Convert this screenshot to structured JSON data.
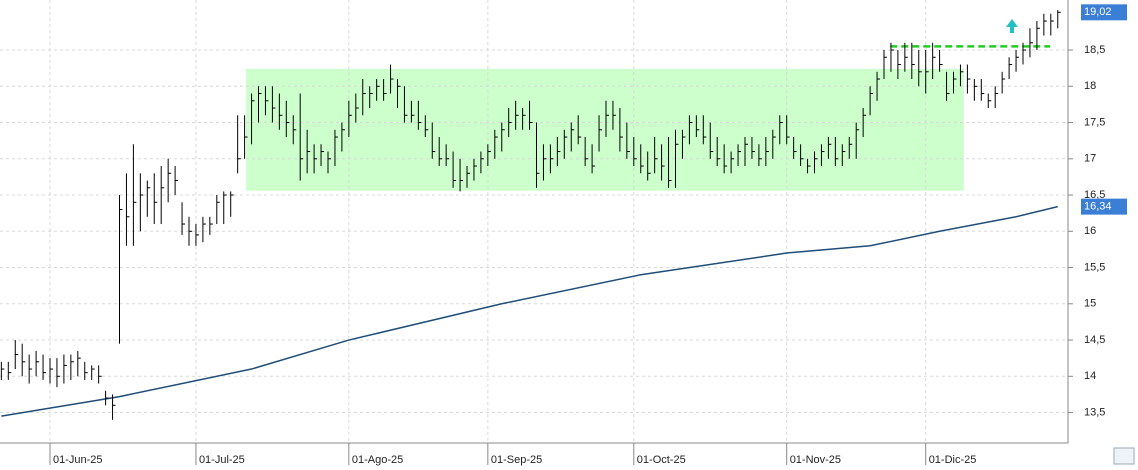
{
  "chart_data": {
    "type": "ohlc",
    "categories": [
      null,
      null,
      null,
      null,
      null,
      null,
      null,
      "01-Jun-25",
      null,
      null,
      null,
      null,
      null,
      null,
      null,
      null,
      null,
      null,
      null,
      null,
      null,
      null,
      null,
      null,
      null,
      null,
      null,
      null,
      "01-Jul-25",
      null,
      null,
      null,
      null,
      null,
      null,
      null,
      null,
      null,
      null,
      null,
      null,
      null,
      null,
      null,
      null,
      null,
      null,
      null,
      null,
      null,
      "01-Ago-25",
      null,
      null,
      null,
      null,
      null,
      null,
      null,
      null,
      null,
      null,
      null,
      null,
      null,
      null,
      null,
      null,
      null,
      null,
      null,
      "01-Sep-25",
      null,
      null,
      null,
      null,
      null,
      null,
      null,
      null,
      null,
      null,
      null,
      null,
      null,
      null,
      null,
      null,
      null,
      null,
      null,
      null,
      "01-Oct-25",
      null,
      null,
      null,
      null,
      null,
      null,
      null,
      null,
      null,
      null,
      null,
      null,
      null,
      null,
      null,
      null,
      null,
      null,
      null,
      null,
      null,
      "01-Nov-25",
      null,
      null,
      null,
      null,
      null,
      null,
      null,
      null,
      null,
      null,
      null,
      null,
      null,
      null,
      null,
      null,
      null,
      null,
      null,
      "01-Dic-25",
      null,
      null,
      null,
      null,
      null,
      null,
      null,
      null,
      null,
      null,
      null,
      null,
      null,
      null,
      null,
      null,
      null,
      null,
      null
    ],
    "high": [
      14.2,
      14.2,
      14.5,
      14.45,
      14.3,
      14.35,
      14.3,
      14.25,
      14.25,
      14.3,
      14.3,
      14.35,
      14.2,
      14.15,
      14.15,
      13.8,
      13.75,
      16.5,
      16.8,
      17.2,
      16.8,
      16.7,
      16.8,
      16.9,
      17.0,
      16.9,
      16.4,
      16.2,
      16.1,
      16.2,
      16.2,
      16.5,
      16.55,
      16.55,
      17.6,
      17.6,
      17.9,
      18.0,
      18.0,
      18.0,
      17.9,
      17.8,
      17.6,
      17.9,
      17.4,
      17.2,
      17.2,
      17.1,
      17.4,
      17.5,
      17.8,
      17.9,
      18.1,
      18.0,
      18.1,
      18.1,
      18.3,
      18.1,
      18.0,
      17.8,
      17.8,
      17.6,
      17.5,
      17.3,
      17.2,
      17.1,
      17.0,
      16.9,
      17.0,
      17.1,
      17.2,
      17.4,
      17.5,
      17.7,
      17.8,
      17.7,
      17.8,
      17.5,
      17.2,
      17.2,
      17.3,
      17.4,
      17.5,
      17.6,
      17.3,
      17.2,
      17.6,
      17.8,
      17.8,
      17.7,
      17.5,
      17.3,
      17.2,
      17.1,
      17.3,
      17.2,
      17.3,
      17.4,
      17.4,
      17.6,
      17.6,
      17.6,
      17.5,
      17.3,
      17.2,
      17.1,
      17.2,
      17.3,
      17.3,
      17.2,
      17.3,
      17.4,
      17.6,
      17.6,
      17.3,
      17.2,
      17.0,
      17.1,
      17.2,
      17.3,
      17.3,
      17.2,
      17.3,
      17.5,
      17.7,
      18.0,
      18.2,
      18.5,
      18.6,
      18.5,
      18.6,
      18.6,
      18.5,
      18.5,
      18.6,
      18.5,
      18.2,
      18.2,
      18.3,
      18.3,
      18.1,
      18.1,
      17.9,
      18.0,
      18.2,
      18.4,
      18.5,
      18.6,
      18.8,
      18.9,
      19.0,
      19.0,
      19.05
    ],
    "low": [
      13.95,
      13.95,
      14.1,
      14.0,
      13.9,
      14.0,
      13.95,
      13.9,
      13.85,
      13.9,
      13.95,
      14.0,
      13.95,
      13.95,
      13.9,
      13.6,
      13.4,
      14.45,
      15.8,
      15.8,
      16.0,
      16.2,
      16.1,
      16.1,
      16.4,
      16.5,
      15.95,
      15.8,
      15.8,
      15.85,
      15.95,
      16.1,
      16.1,
      16.2,
      16.8,
      17.0,
      17.2,
      17.5,
      17.6,
      17.5,
      17.4,
      17.3,
      17.2,
      16.7,
      16.8,
      16.8,
      16.9,
      16.8,
      16.9,
      17.1,
      17.3,
      17.5,
      17.6,
      17.7,
      17.8,
      17.8,
      17.9,
      17.7,
      17.5,
      17.5,
      17.4,
      17.3,
      17.0,
      16.9,
      16.9,
      16.6,
      16.55,
      16.6,
      16.7,
      16.8,
      16.9,
      17.0,
      17.1,
      17.3,
      17.4,
      17.4,
      17.4,
      16.6,
      16.7,
      16.8,
      16.9,
      17.0,
      17.1,
      17.2,
      16.9,
      16.8,
      17.1,
      17.3,
      17.4,
      17.1,
      17.0,
      16.9,
      16.8,
      16.7,
      16.8,
      16.7,
      16.6,
      16.6,
      17.0,
      17.2,
      17.3,
      17.2,
      17.0,
      16.9,
      16.8,
      16.8,
      16.9,
      16.9,
      17.0,
      16.9,
      16.9,
      17.0,
      17.2,
      17.2,
      17.0,
      16.9,
      16.8,
      16.8,
      16.9,
      17.0,
      16.9,
      16.9,
      17.0,
      17.0,
      17.3,
      17.6,
      17.8,
      18.1,
      18.2,
      18.1,
      18.2,
      18.1,
      18.0,
      17.9,
      18.1,
      18.2,
      17.8,
      17.9,
      18.0,
      17.9,
      17.8,
      17.8,
      17.7,
      17.7,
      17.9,
      18.1,
      18.2,
      18.3,
      18.4,
      18.5,
      18.7,
      18.7,
      18.8
    ],
    "close": [
      14.1,
      14.05,
      14.3,
      14.2,
      14.1,
      14.2,
      14.05,
      14.1,
      14.0,
      14.15,
      14.2,
      14.25,
      14.05,
      14.1,
      14.0,
      13.7,
      13.6,
      16.3,
      16.2,
      16.4,
      16.5,
      16.6,
      16.4,
      16.6,
      16.8,
      16.7,
      16.1,
      16.0,
      15.95,
      16.1,
      16.1,
      16.4,
      16.5,
      16.5,
      17.0,
      17.3,
      17.8,
      17.9,
      17.8,
      17.7,
      17.6,
      17.5,
      17.4,
      17.0,
      17.1,
      17.0,
      17.1,
      17.0,
      17.3,
      17.4,
      17.6,
      17.7,
      17.9,
      17.9,
      18.0,
      17.9,
      18.1,
      18.0,
      17.6,
      17.6,
      17.5,
      17.4,
      17.1,
      17.0,
      17.0,
      16.7,
      16.7,
      16.8,
      16.9,
      17.0,
      17.1,
      17.3,
      17.4,
      17.5,
      17.6,
      17.6,
      17.5,
      16.8,
      17.0,
      17.0,
      17.1,
      17.3,
      17.4,
      17.3,
      17.0,
      16.9,
      17.4,
      17.6,
      17.6,
      17.3,
      17.1,
      17.0,
      16.9,
      16.8,
      17.0,
      16.9,
      16.7,
      17.2,
      17.3,
      17.5,
      17.4,
      17.3,
      17.1,
      17.0,
      16.9,
      17.0,
      17.1,
      17.2,
      17.1,
      17.0,
      17.1,
      17.3,
      17.5,
      17.3,
      17.1,
      17.0,
      16.9,
      17.0,
      17.1,
      17.2,
      17.0,
      17.1,
      17.2,
      17.4,
      17.6,
      17.9,
      18.1,
      18.4,
      18.5,
      18.3,
      18.4,
      18.3,
      18.2,
      18.2,
      18.4,
      18.3,
      17.9,
      18.1,
      18.2,
      18.1,
      18.0,
      17.9,
      17.8,
      17.9,
      18.1,
      18.3,
      18.4,
      18.5,
      18.6,
      18.8,
      18.9,
      18.9,
      19.02
    ],
    "color": "#000000",
    "end_label": "19,02",
    "moving_average": {
      "x": [
        0,
        17,
        36,
        50,
        72,
        92,
        113,
        125,
        135,
        146,
        152
      ],
      "values": [
        13.45,
        13.72,
        14.1,
        14.5,
        15.0,
        15.4,
        15.7,
        15.8,
        16.0,
        16.2,
        16.34
      ],
      "color": "#1f4e79",
      "end_label": "16,34"
    },
    "zone": {
      "x": [
        35.2,
        138.5
      ],
      "y": [
        16.56,
        18.24
      ],
      "color": "#ccffcc"
    },
    "resistance": {
      "x": [
        127.9,
        150.9
      ],
      "y": 18.55,
      "color": "#22cc22"
    },
    "ylim": [
      13.08,
      19.19
    ],
    "yticks": [
      {
        "value": 13.5,
        "label": "13,5"
      },
      14,
      {
        "value": 14.5,
        "label": "14,5"
      },
      15,
      {
        "value": 15.5,
        "label": "15,5"
      },
      16,
      {
        "value": 16.5,
        "label": "16,5"
      },
      17,
      {
        "value": 17.5,
        "label": "17,5"
      },
      18,
      {
        "value": 18.5,
        "label": "18,5"
      }
    ],
    "grid": true
  }
}
